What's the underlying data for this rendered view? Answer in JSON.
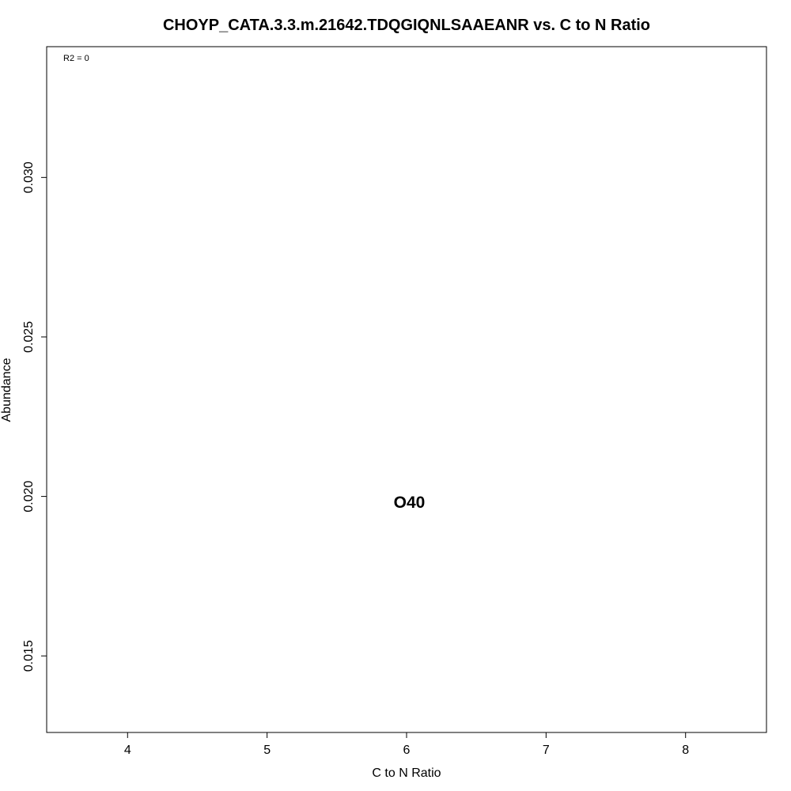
{
  "chart_data": {
    "type": "scatter",
    "title": "CHOYP_CATA.3.3.m.21642.TDQGIQNLSAAEANR vs. C to N Ratio",
    "xlabel": "C to N Ratio",
    "ylabel": "Abundance",
    "xlim": [
      3.42,
      8.58
    ],
    "ylim": [
      0.0126,
      0.0341
    ],
    "x_ticks": [
      4,
      5,
      6,
      7,
      8
    ],
    "x_tick_labels": [
      "4",
      "5",
      "6",
      "7",
      "8"
    ],
    "y_ticks": [
      0.015,
      0.02,
      0.025,
      0.03
    ],
    "y_tick_labels": [
      "0.015",
      "0.020",
      "0.025",
      "0.030"
    ],
    "annotation": "R2 = 0",
    "grid": false,
    "points": [
      {
        "label": "O40",
        "x": 6.02,
        "y": 0.0198
      }
    ]
  }
}
